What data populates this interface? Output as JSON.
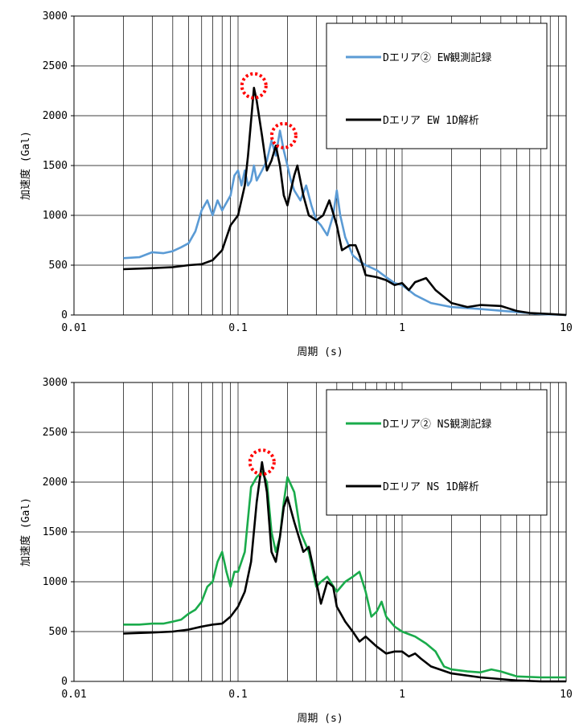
{
  "chart_data": [
    {
      "type": "line",
      "xlabel": "周期 (s)",
      "ylabel": "加速度 (Gal)",
      "xscale": "log",
      "xlim": [
        0.01,
        10
      ],
      "ylim": [
        0,
        3000
      ],
      "x_ticks": [
        "0.01",
        "0.1",
        "1",
        "10"
      ],
      "y_ticks": [
        "0",
        "500",
        "1000",
        "1500",
        "2000",
        "2500",
        "3000"
      ],
      "grid": "vertical log gridlines, horizontal at 500",
      "legend_position": "top-right",
      "series": [
        {
          "name": "Dエリア② EW観測記録",
          "color": "#5b9bd5",
          "points": [
            [
              0.02,
              570
            ],
            [
              0.025,
              580
            ],
            [
              0.03,
              630
            ],
            [
              0.035,
              620
            ],
            [
              0.04,
              640
            ],
            [
              0.045,
              680
            ],
            [
              0.05,
              720
            ],
            [
              0.055,
              840
            ],
            [
              0.06,
              1050
            ],
            [
              0.065,
              1150
            ],
            [
              0.07,
              1000
            ],
            [
              0.075,
              1150
            ],
            [
              0.08,
              1050
            ],
            [
              0.09,
              1200
            ],
            [
              0.095,
              1400
            ],
            [
              0.1,
              1450
            ],
            [
              0.105,
              1300
            ],
            [
              0.11,
              1450
            ],
            [
              0.115,
              1300
            ],
            [
              0.12,
              1350
            ],
            [
              0.125,
              1500
            ],
            [
              0.13,
              1350
            ],
            [
              0.14,
              1450
            ],
            [
              0.15,
              1550
            ],
            [
              0.16,
              1750
            ],
            [
              0.17,
              1600
            ],
            [
              0.18,
              1850
            ],
            [
              0.19,
              1650
            ],
            [
              0.2,
              1500
            ],
            [
              0.21,
              1350
            ],
            [
              0.22,
              1250
            ],
            [
              0.24,
              1150
            ],
            [
              0.26,
              1300
            ],
            [
              0.28,
              1100
            ],
            [
              0.3,
              950
            ],
            [
              0.32,
              900
            ],
            [
              0.35,
              800
            ],
            [
              0.38,
              1000
            ],
            [
              0.4,
              1250
            ],
            [
              0.42,
              1000
            ],
            [
              0.45,
              780
            ],
            [
              0.5,
              600
            ],
            [
              0.55,
              540
            ],
            [
              0.6,
              500
            ],
            [
              0.7,
              450
            ],
            [
              0.8,
              380
            ],
            [
              0.9,
              320
            ],
            [
              1.0,
              300
            ],
            [
              1.2,
              200
            ],
            [
              1.5,
              120
            ],
            [
              2.0,
              80
            ],
            [
              3.0,
              60
            ],
            [
              5.0,
              30
            ],
            [
              7.0,
              10
            ],
            [
              10.0,
              0
            ]
          ]
        },
        {
          "name": "Dエリア EW 1D解析",
          "color": "#000000",
          "points": [
            [
              0.02,
              460
            ],
            [
              0.03,
              470
            ],
            [
              0.04,
              480
            ],
            [
              0.05,
              500
            ],
            [
              0.06,
              510
            ],
            [
              0.07,
              550
            ],
            [
              0.08,
              650
            ],
            [
              0.09,
              900
            ],
            [
              0.1,
              1000
            ],
            [
              0.11,
              1300
            ],
            [
              0.115,
              1600
            ],
            [
              0.12,
              1950
            ],
            [
              0.125,
              2280
            ],
            [
              0.13,
              2150
            ],
            [
              0.14,
              1800
            ],
            [
              0.15,
              1450
            ],
            [
              0.16,
              1550
            ],
            [
              0.17,
              1700
            ],
            [
              0.18,
              1500
            ],
            [
              0.19,
              1200
            ],
            [
              0.2,
              1100
            ],
            [
              0.22,
              1400
            ],
            [
              0.23,
              1500
            ],
            [
              0.25,
              1200
            ],
            [
              0.27,
              1000
            ],
            [
              0.3,
              950
            ],
            [
              0.33,
              1000
            ],
            [
              0.36,
              1150
            ],
            [
              0.4,
              900
            ],
            [
              0.43,
              650
            ],
            [
              0.48,
              700
            ],
            [
              0.52,
              700
            ],
            [
              0.55,
              600
            ],
            [
              0.6,
              400
            ],
            [
              0.7,
              380
            ],
            [
              0.8,
              350
            ],
            [
              0.9,
              300
            ],
            [
              1.0,
              320
            ],
            [
              1.1,
              250
            ],
            [
              1.2,
              330
            ],
            [
              1.4,
              370
            ],
            [
              1.6,
              250
            ],
            [
              2.0,
              120
            ],
            [
              2.5,
              80
            ],
            [
              3.0,
              100
            ],
            [
              4.0,
              90
            ],
            [
              5.0,
              40
            ],
            [
              6.0,
              20
            ],
            [
              8.0,
              10
            ],
            [
              10.0,
              0
            ]
          ]
        }
      ],
      "annotations": [
        {
          "shape": "dotted-circle",
          "color": "#ff0000",
          "x": 0.125,
          "y": 2300
        },
        {
          "shape": "dotted-circle",
          "color": "#ff0000",
          "x": 0.19,
          "y": 1800
        }
      ]
    },
    {
      "type": "line",
      "xlabel": "周期 (s)",
      "ylabel": "加速度 (Gal)",
      "xscale": "log",
      "xlim": [
        0.01,
        10
      ],
      "ylim": [
        0,
        3000
      ],
      "x_ticks": [
        "0.01",
        "0.1",
        "1",
        "10"
      ],
      "y_ticks": [
        "0",
        "500",
        "1000",
        "1500",
        "2000",
        "2500",
        "3000"
      ],
      "grid": "vertical log gridlines, horizontal at 500",
      "legend_position": "top-right",
      "series": [
        {
          "name": "Dエリア② NS観測記録",
          "color": "#1aab4b",
          "points": [
            [
              0.02,
              570
            ],
            [
              0.025,
              570
            ],
            [
              0.03,
              580
            ],
            [
              0.035,
              580
            ],
            [
              0.04,
              600
            ],
            [
              0.045,
              620
            ],
            [
              0.05,
              680
            ],
            [
              0.055,
              720
            ],
            [
              0.06,
              800
            ],
            [
              0.065,
              950
            ],
            [
              0.07,
              1000
            ],
            [
              0.075,
              1200
            ],
            [
              0.08,
              1300
            ],
            [
              0.085,
              1100
            ],
            [
              0.09,
              950
            ],
            [
              0.095,
              1100
            ],
            [
              0.1,
              1100
            ],
            [
              0.11,
              1300
            ],
            [
              0.12,
              1950
            ],
            [
              0.13,
              2050
            ],
            [
              0.14,
              2100
            ],
            [
              0.15,
              2000
            ],
            [
              0.16,
              1500
            ],
            [
              0.17,
              1300
            ],
            [
              0.18,
              1450
            ],
            [
              0.19,
              1800
            ],
            [
              0.2,
              2050
            ],
            [
              0.22,
              1900
            ],
            [
              0.24,
              1500
            ],
            [
              0.27,
              1300
            ],
            [
              0.3,
              950
            ],
            [
              0.32,
              1000
            ],
            [
              0.35,
              1050
            ],
            [
              0.4,
              900
            ],
            [
              0.45,
              1000
            ],
            [
              0.5,
              1050
            ],
            [
              0.55,
              1100
            ],
            [
              0.6,
              900
            ],
            [
              0.65,
              650
            ],
            [
              0.7,
              700
            ],
            [
              0.75,
              800
            ],
            [
              0.8,
              650
            ],
            [
              0.9,
              550
            ],
            [
              1.0,
              500
            ],
            [
              1.2,
              450
            ],
            [
              1.4,
              380
            ],
            [
              1.6,
              300
            ],
            [
              1.8,
              150
            ],
            [
              2.0,
              120
            ],
            [
              2.5,
              100
            ],
            [
              3.0,
              90
            ],
            [
              3.5,
              120
            ],
            [
              4.0,
              100
            ],
            [
              5.0,
              50
            ],
            [
              7.0,
              40
            ],
            [
              10.0,
              40
            ]
          ]
        },
        {
          "name": "Dエリア NS 1D解析",
          "color": "#000000",
          "points": [
            [
              0.02,
              480
            ],
            [
              0.03,
              490
            ],
            [
              0.04,
              500
            ],
            [
              0.05,
              520
            ],
            [
              0.06,
              550
            ],
            [
              0.07,
              570
            ],
            [
              0.08,
              580
            ],
            [
              0.09,
              650
            ],
            [
              0.1,
              750
            ],
            [
              0.11,
              900
            ],
            [
              0.12,
              1200
            ],
            [
              0.13,
              1800
            ],
            [
              0.14,
              2200
            ],
            [
              0.15,
              1900
            ],
            [
              0.16,
              1300
            ],
            [
              0.17,
              1200
            ],
            [
              0.18,
              1450
            ],
            [
              0.19,
              1750
            ],
            [
              0.2,
              1850
            ],
            [
              0.22,
              1600
            ],
            [
              0.25,
              1300
            ],
            [
              0.27,
              1350
            ],
            [
              0.3,
              1000
            ],
            [
              0.32,
              780
            ],
            [
              0.35,
              1000
            ],
            [
              0.38,
              950
            ],
            [
              0.4,
              750
            ],
            [
              0.45,
              600
            ],
            [
              0.5,
              500
            ],
            [
              0.55,
              400
            ],
            [
              0.6,
              450
            ],
            [
              0.7,
              350
            ],
            [
              0.8,
              280
            ],
            [
              0.9,
              300
            ],
            [
              1.0,
              300
            ],
            [
              1.1,
              250
            ],
            [
              1.2,
              280
            ],
            [
              1.3,
              230
            ],
            [
              1.5,
              150
            ],
            [
              2.0,
              80
            ],
            [
              3.0,
              40
            ],
            [
              5.0,
              10
            ],
            [
              7.0,
              0
            ],
            [
              10.0,
              0
            ]
          ]
        }
      ],
      "annotations": [
        {
          "shape": "dotted-circle",
          "color": "#ff0000",
          "x": 0.14,
          "y": 2200
        }
      ]
    }
  ]
}
